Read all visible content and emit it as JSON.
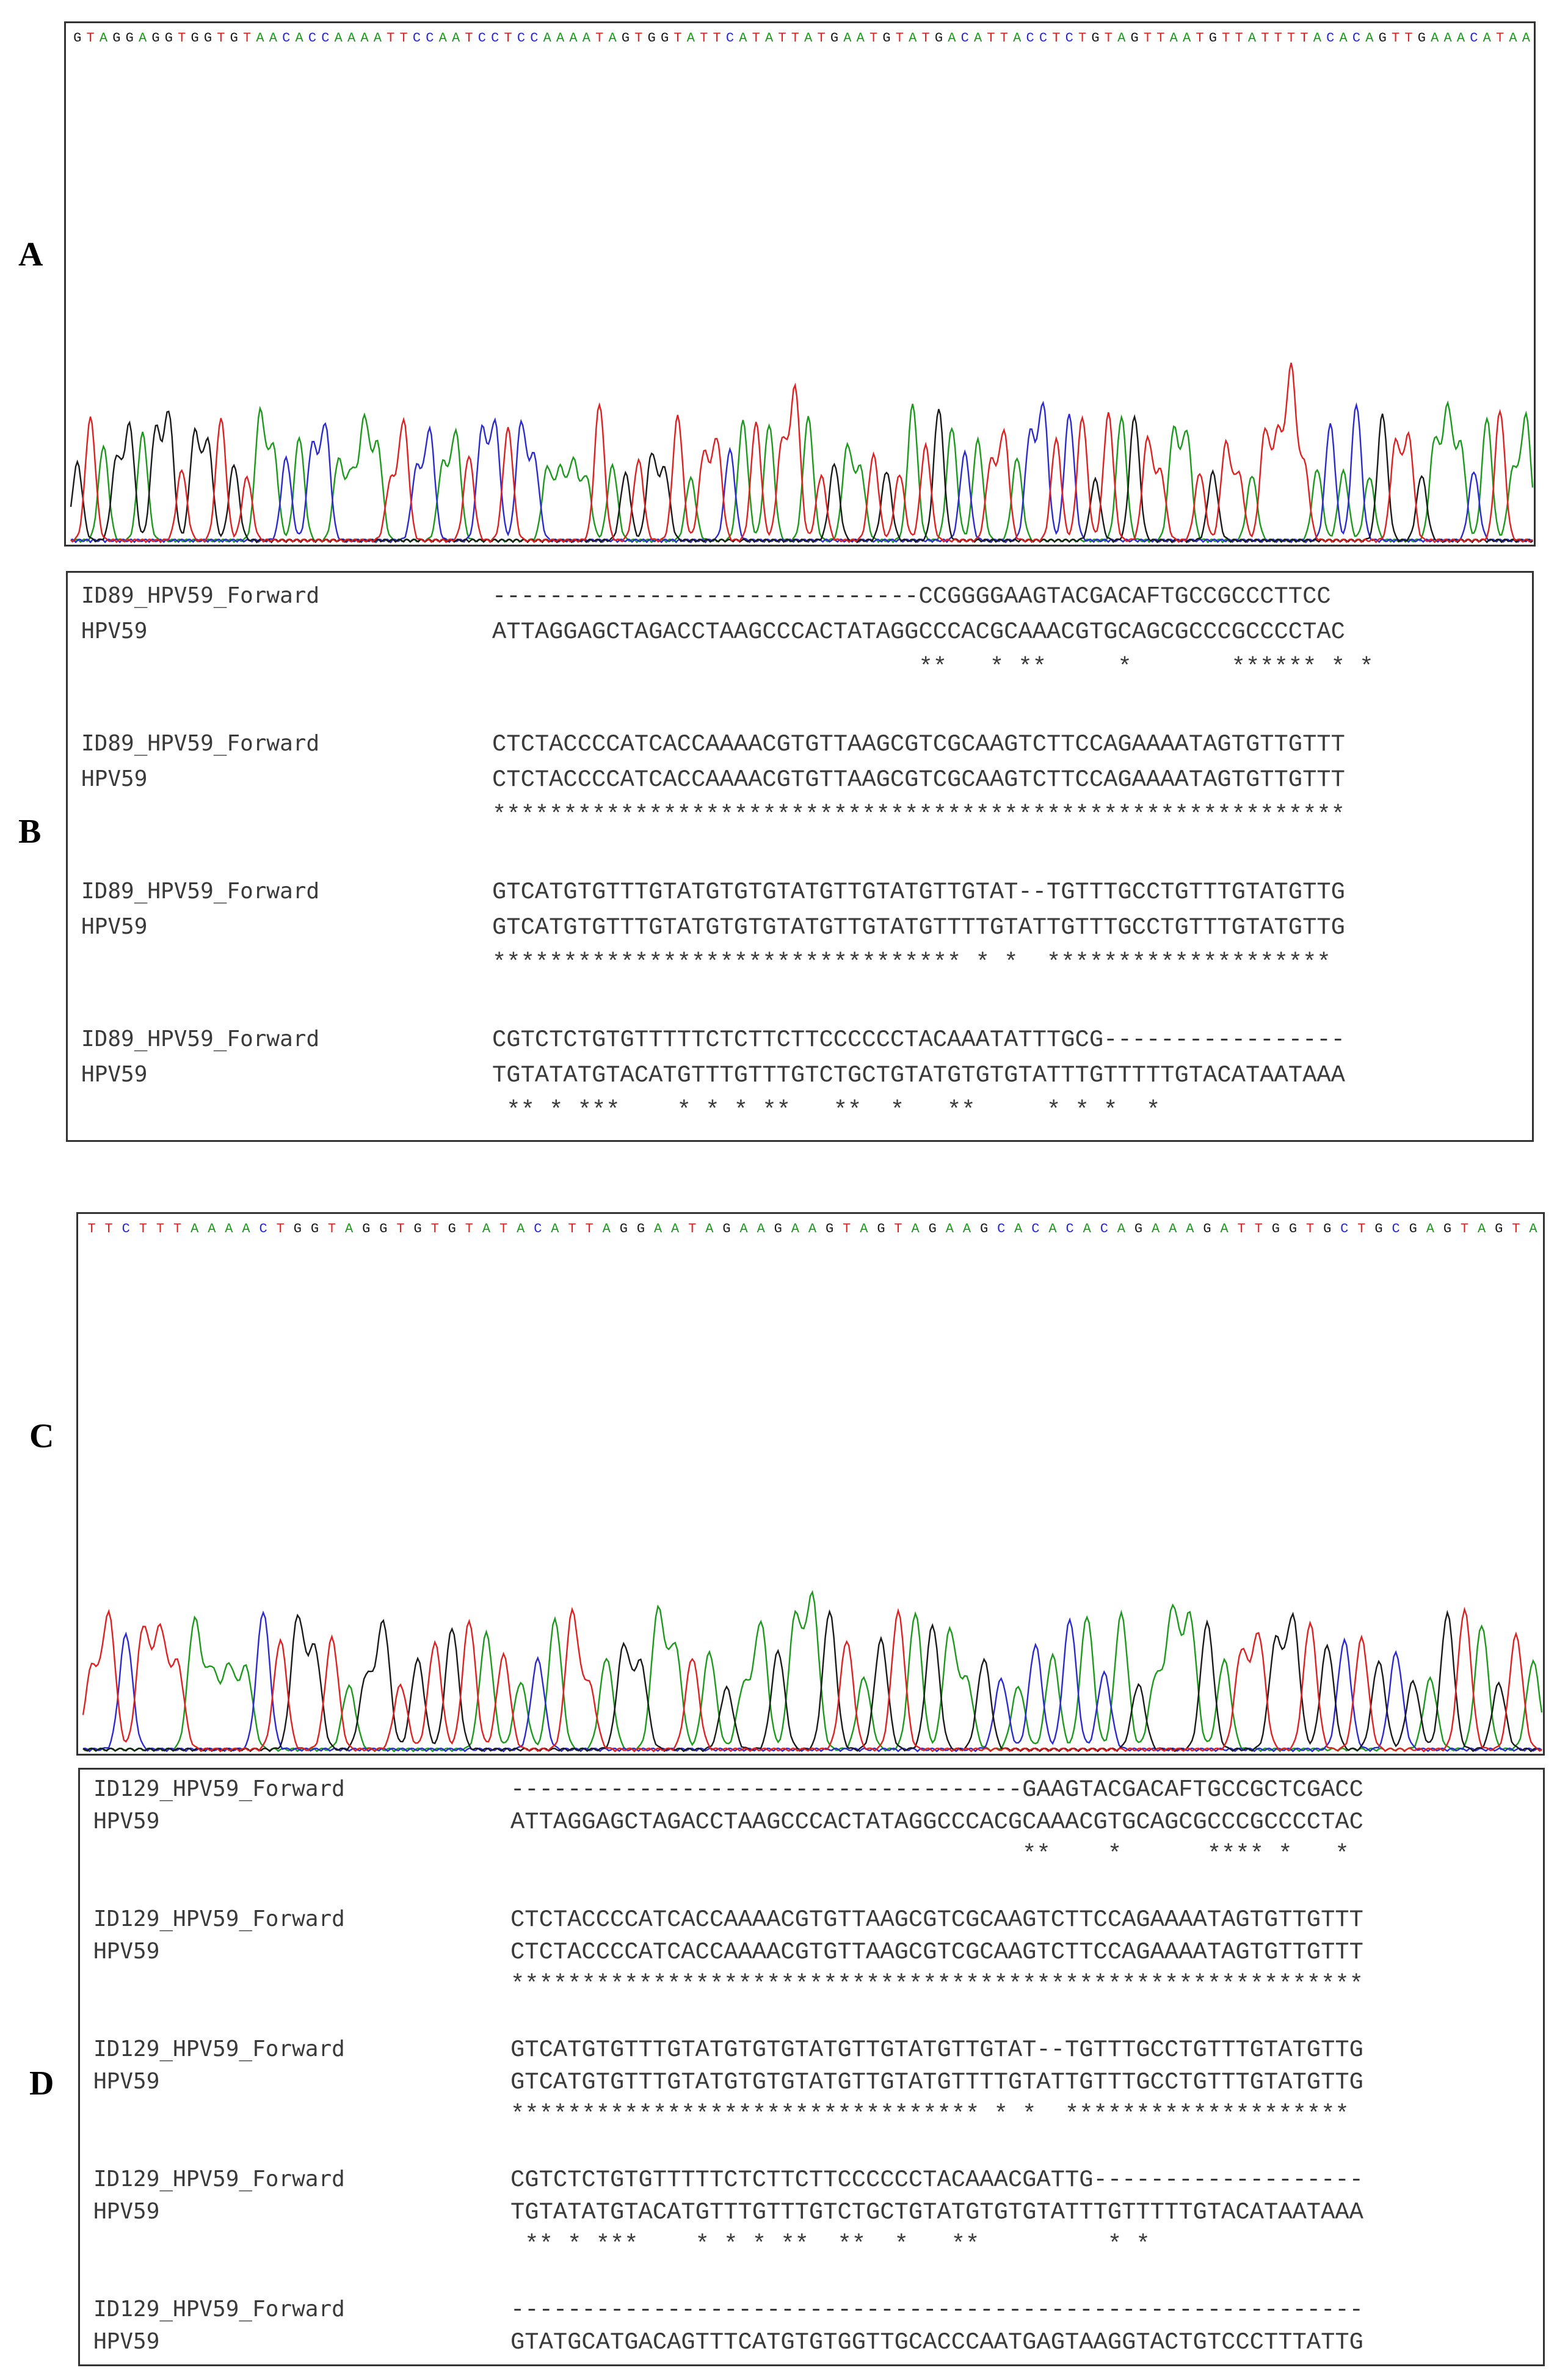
{
  "panels": {
    "a": "A",
    "b": "B",
    "c": "C",
    "d": "D"
  },
  "chromatogram_a": {
    "sequence": "GTAGGAGGTGGTGTAACACCAAAATTCCAATCCTCCAAAATAGTGGTATTCATATTATGAATGTATGACATTACCTCTGTAGTTAATGTTATTTTACACAGTTGAAACATAA"
  },
  "chromatogram_c": {
    "sequence": "TTCTTTAAAACTGGTAGGTGTGTATACATTAGGAATAGAAGAAGTAGTAGAAGCACACACAGAAAGATTGGTGCTGCGAGTAGTA"
  },
  "base_colors": {
    "A": "#1a9a1a",
    "C": "#2a2ad0",
    "G": "#1a1a1a",
    "T": "#e02020"
  },
  "alignment_b": {
    "blocks": [
      {
        "query_name": "ID89_HPV59_Forward",
        "ref_name": "HPV59",
        "query": "------------------------------CCGGGGAAGTACGACAFTGCCGCCCTTCC",
        "ref": "ATTAGGAGCTAGACCTAAGCCCACTATAGGCCCACGCAAACGTGCAGCGCCCGCCCCTAC",
        "cons": "                              **   * **     *       ****** * *"
      },
      {
        "query_name": "ID89_HPV59_Forward",
        "ref_name": "HPV59",
        "query": "CTCTACCCCATCACCAAAACGTGTTAAGCGTCGCAAGTCTTCCAGAAAATAGTGTTGTTT",
        "ref": "CTCTACCCCATCACCAAAACGTGTTAAGCGTCGCAAGTCTTCCAGAAAATAGTGTTGTTT",
        "cons": "************************************************************"
      },
      {
        "query_name": "ID89_HPV59_Forward",
        "ref_name": "HPV59",
        "query": "GTCATGTGTTTGTATGTGTGTATGTTGTATGTTGTAT--TGTTTGCCTGTTTGTATGTTG",
        "ref": "GTCATGTGTTTGTATGTGTGTATGTTGTATGTTTTGTATTGTTTGCCTGTTTGTATGTTG",
        "cons": "********************************* * *  ********************"
      },
      {
        "query_name": "ID89_HPV59_Forward",
        "ref_name": "HPV59",
        "query": "CGTCTCTGTGTTTTTCTCTTCTTCCCCCCTACAAATATTTGCG-----------------",
        "ref": "TGTATATGTACATGTTTGTTTGTCTGCTGTATGTGTGTATTTGTTTTTGTACATAATAAA",
        "cons": " ** * ***    * * * **   **  *   **     * * *  *"
      }
    ]
  },
  "alignment_d": {
    "blocks": [
      {
        "query_name": "ID129_HPV59_Forward",
        "ref_name": "HPV59",
        "query": "------------------------------------GAAGTACGACAFTGCCGCTCGACC",
        "ref": "ATTAGGAGCTAGACCTAAGCCCACTATAGGCCCACGCAAACGTGCAGCGCCCGCCCCTAC",
        "cons": "                                    **    *      **** *   *"
      },
      {
        "query_name": "ID129_HPV59_Forward",
        "ref_name": "HPV59",
        "query": "CTCTACCCCATCACCAAAACGTGTTAAGCGTCGCAAGTCTTCCAGAAAATAGTGTTGTTT",
        "ref": "CTCTACCCCATCACCAAAACGTGTTAAGCGTCGCAAGTCTTCCAGAAAATAGTGTTGTTT",
        "cons": "************************************************************"
      },
      {
        "query_name": "ID129_HPV59_Forward",
        "ref_name": "HPV59",
        "query": "GTCATGTGTTTGTATGTGTGTATGTTGTATGTTGTAT--TGTTTGCCTGTTTGTATGTTG",
        "ref": "GTCATGTGTTTGTATGTGTGTATGTTGTATGTTTTGTATTGTTTGCCTGTTTGTATGTTG",
        "cons": "********************************* * *  ********************"
      },
      {
        "query_name": "ID129_HPV59_Forward",
        "ref_name": "HPV59",
        "query": "CGTCTCTGTGTTTTTCTCTTCTTCCCCCCTACAAACGATTG-------------------",
        "ref": "TGTATATGTACATGTTTGTTTGTCTGCTGTATGTGTGTATTTGTTTTTGTACATAATAAA",
        "cons": " ** * ***    * * * **  **  *   **         * *"
      },
      {
        "query_name": "ID129_HPV59_Forward",
        "ref_name": "HPV59",
        "query": "------------------------------------------------------------",
        "ref": "GTATGCATGACAGTTTCATGTGTGGTTGCACCCAATGAGTAAGGTACTGTCCCTTTATTG",
        "cons": ""
      }
    ]
  }
}
